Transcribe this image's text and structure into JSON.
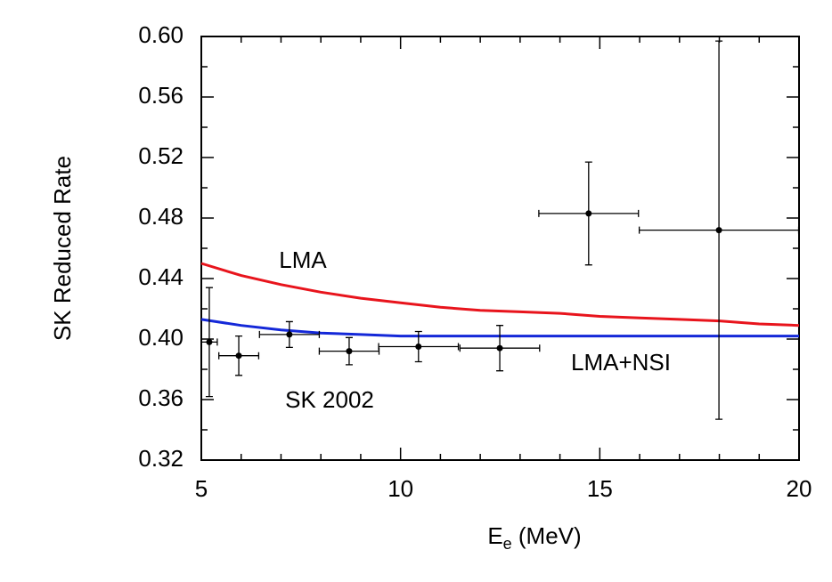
{
  "chart_data": {
    "type": "scatter",
    "xlabel": [
      "E",
      "e",
      " (MeV)"
    ],
    "ylabel": "SK Reduced Rate",
    "xlim": [
      5,
      20
    ],
    "xticks": [
      5,
      10,
      15,
      20
    ],
    "xminor_ticks": [
      6,
      7,
      8,
      9,
      11,
      12,
      13,
      14,
      16,
      17,
      18,
      19
    ],
    "ylim": [
      0.32,
      0.6
    ],
    "yticks": [
      0.32,
      0.36,
      {
        "value": 0.4,
        "label": "0.40"
      },
      0.44,
      0.48,
      0.52,
      0.56,
      {
        "value": 0.6,
        "label": "0.60"
      }
    ],
    "yminor_ticks": [
      0.34,
      0.38,
      0.42,
      0.46,
      0.5,
      0.54,
      0.58
    ],
    "series": [
      {
        "name": "LMA",
        "mode": "line",
        "color": "#e8141c",
        "x": [
          5,
          6,
          7,
          8,
          9,
          10,
          11,
          12,
          13,
          14,
          15,
          16,
          17,
          18,
          19,
          20
        ],
        "values": [
          0.45,
          0.442,
          0.436,
          0.431,
          0.427,
          0.424,
          0.421,
          0.419,
          0.418,
          0.417,
          0.415,
          0.414,
          0.413,
          0.412,
          0.41,
          0.409
        ]
      },
      {
        "name": "LMA+NSI",
        "mode": "line",
        "color": "#1428d8",
        "x": [
          5,
          6,
          7,
          8,
          9,
          10,
          11,
          12,
          13,
          14,
          15,
          16,
          17,
          18,
          19,
          20
        ],
        "values": [
          0.413,
          0.409,
          0.406,
          0.404,
          0.403,
          0.402,
          0.402,
          0.402,
          0.402,
          0.402,
          0.402,
          0.402,
          0.402,
          0.402,
          0.402,
          0.402
        ]
      },
      {
        "name": "SK 2002",
        "mode": "errorbar",
        "color": "#000000",
        "x": [
          5.2,
          5.94,
          7.21,
          8.71,
          10.45,
          12.49,
          14.72,
          17.99
        ],
        "xerr": [
          0.2,
          0.5,
          0.75,
          0.75,
          1.0,
          1.0,
          1.25,
          2.0
        ],
        "values": [
          0.398,
          0.389,
          0.403,
          0.392,
          0.395,
          0.394,
          0.483,
          0.472
        ],
        "yerr": [
          0.036,
          0.013,
          0.0085,
          0.009,
          0.01,
          0.015,
          0.034,
          0.125
        ]
      }
    ]
  }
}
